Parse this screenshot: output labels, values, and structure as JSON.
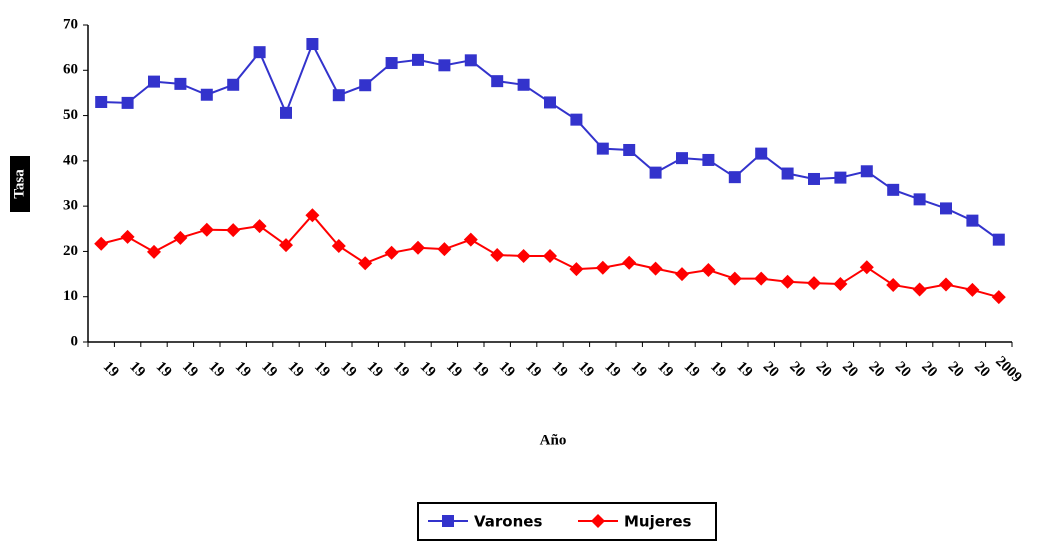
{
  "chart_data": {
    "type": "line",
    "x_label": "Año",
    "y_label": "Tasa",
    "categories": [
      "19",
      "19",
      "19",
      "19",
      "19",
      "19",
      "19",
      "19",
      "19",
      "19",
      "19",
      "19",
      "19",
      "19",
      "19",
      "19",
      "19",
      "19",
      "19",
      "19",
      "19",
      "19",
      "19",
      "19",
      "19",
      "20",
      "20",
      "20",
      "20",
      "20",
      "20",
      "20",
      "20",
      "20",
      "2009"
    ],
    "series": [
      {
        "name": "Varones",
        "color": "#3333cc",
        "marker": "square",
        "values": [
          53,
          52.8,
          57.5,
          57,
          54.6,
          56.8,
          64,
          50.6,
          65.8,
          54.5,
          56.7,
          61.6,
          62.3,
          61.1,
          62.2,
          57.6,
          56.8,
          52.9,
          49.1,
          42.7,
          42.4,
          37.4,
          40.6,
          40.2,
          36.4,
          41.6,
          37.2,
          36,
          36.3,
          37.7,
          33.6,
          31.5,
          29.5,
          26.8,
          22.6
        ]
      },
      {
        "name": "Mujeres",
        "color": "#ff0000",
        "marker": "diamond",
        "values": [
          21.7,
          23.2,
          19.9,
          23,
          24.8,
          24.7,
          25.6,
          21.4,
          28,
          21.2,
          17.4,
          19.7,
          20.8,
          20.5,
          22.6,
          19.2,
          19,
          19,
          16.1,
          16.4,
          17.5,
          16.2,
          15,
          15.9,
          14,
          14,
          13.3,
          13,
          12.8,
          16.5,
          12.6,
          11.6,
          12.7,
          11.5,
          9.9
        ]
      }
    ],
    "ylim": [
      0,
      70
    ],
    "yticks": [
      0,
      10,
      20,
      30,
      40,
      50,
      60,
      70
    ],
    "grid": false,
    "legend": "bottom"
  }
}
